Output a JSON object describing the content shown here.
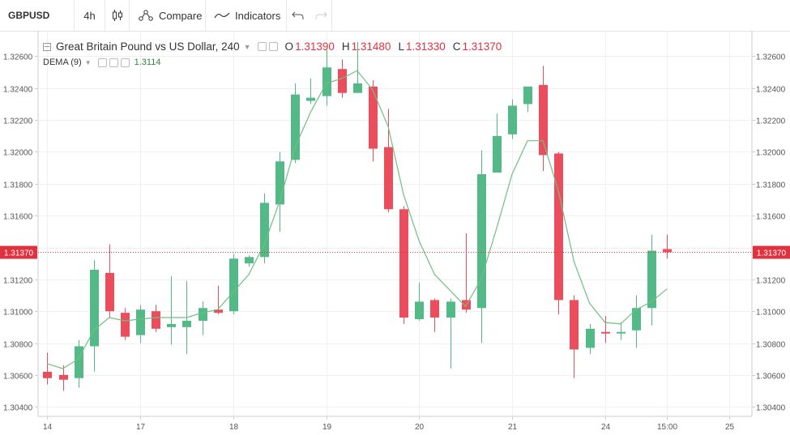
{
  "toolbar": {
    "symbol": "GBPUSD",
    "interval": "4h",
    "chart_type_icon": "candles-icon",
    "compare_label": "Compare",
    "indicators_label": "Indicators",
    "undo_icon": "undo-icon",
    "redo_icon": "redo-icon"
  },
  "legend": {
    "title": "Great Britain Pound vs US Dollar, 240",
    "o_key": "O",
    "o": "1.31390",
    "h_key": "H",
    "h": "1.31480",
    "l_key": "L",
    "l": "1.31330",
    "c_key": "C",
    "c": "1.31370",
    "indicator": "DEMA (9)",
    "indicator_value": "1.3114"
  },
  "colors": {
    "up": "#53b987",
    "down": "#eb4d5c",
    "dema": "#6fc07f",
    "last_price": "#e0313f"
  },
  "chart_data": {
    "type": "candlestick",
    "y_ticks": [
      "1.30400",
      "1.30600",
      "1.30800",
      "1.31000",
      "1.31200",
      "1.31400",
      "1.31600",
      "1.31800",
      "1.32000",
      "1.32200",
      "1.32400",
      "1.32600"
    ],
    "y_tick_values": [
      1.304,
      1.306,
      1.308,
      1.31,
      1.312,
      1.314,
      1.316,
      1.318,
      1.32,
      1.322,
      1.324,
      1.326
    ],
    "ylim": [
      1.3034,
      1.3276
    ],
    "x_tick_labels": [
      "14",
      "17",
      "18",
      "19",
      "20",
      "21",
      "24",
      "15:00",
      "25"
    ],
    "x_tick_bar_index": [
      0,
      6,
      12,
      18,
      24,
      30,
      36,
      40,
      44
    ],
    "last_price_label": "1.31370",
    "last_price": 1.3137,
    "bars_count": 46,
    "candles": [
      {
        "i": 0,
        "o": 1.3062,
        "h": 1.3074,
        "l": 1.3054,
        "c": 1.3058
      },
      {
        "i": 1,
        "o": 1.306,
        "h": 1.3066,
        "l": 1.305,
        "c": 1.3057
      },
      {
        "i": 2,
        "o": 1.3058,
        "h": 1.3082,
        "l": 1.3052,
        "c": 1.3078
      },
      {
        "i": 3,
        "o": 1.3078,
        "h": 1.3132,
        "l": 1.3062,
        "c": 1.3126
      },
      {
        "i": 4,
        "o": 1.3124,
        "h": 1.3142,
        "l": 1.3096,
        "c": 1.31
      },
      {
        "i": 5,
        "o": 1.3099,
        "h": 1.3102,
        "l": 1.3082,
        "c": 1.3084
      },
      {
        "i": 6,
        "o": 1.3085,
        "h": 1.3104,
        "l": 1.308,
        "c": 1.3101
      },
      {
        "i": 7,
        "o": 1.31,
        "h": 1.3104,
        "l": 1.3087,
        "c": 1.3089
      },
      {
        "i": 8,
        "o": 1.309,
        "h": 1.3122,
        "l": 1.3079,
        "c": 1.3092
      },
      {
        "i": 9,
        "o": 1.309,
        "h": 1.3119,
        "l": 1.3073,
        "c": 1.3094
      },
      {
        "i": 10,
        "o": 1.3094,
        "h": 1.3106,
        "l": 1.3085,
        "c": 1.3102
      },
      {
        "i": 11,
        "o": 1.3101,
        "h": 1.3116,
        "l": 1.3098,
        "c": 1.3099
      },
      {
        "i": 12,
        "o": 1.31,
        "h": 1.3136,
        "l": 1.3098,
        "c": 1.3133
      },
      {
        "i": 13,
        "o": 1.313,
        "h": 1.3135,
        "l": 1.3128,
        "c": 1.3134
      },
      {
        "i": 14,
        "o": 1.3134,
        "h": 1.3174,
        "l": 1.313,
        "c": 1.3168
      },
      {
        "i": 15,
        "o": 1.3167,
        "h": 1.32,
        "l": 1.315,
        "c": 1.3194
      },
      {
        "i": 16,
        "o": 1.3195,
        "h": 1.3243,
        "l": 1.3193,
        "c": 1.3236
      },
      {
        "i": 17,
        "o": 1.3232,
        "h": 1.3246,
        "l": 1.323,
        "c": 1.3234
      },
      {
        "i": 18,
        "o": 1.3235,
        "h": 1.3264,
        "l": 1.3229,
        "c": 1.3253
      },
      {
        "i": 19,
        "o": 1.3252,
        "h": 1.3258,
        "l": 1.3234,
        "c": 1.3237
      },
      {
        "i": 20,
        "o": 1.3237,
        "h": 1.3269,
        "l": 1.3237,
        "c": 1.3243
      },
      {
        "i": 21,
        "o": 1.3241,
        "h": 1.3245,
        "l": 1.3194,
        "c": 1.3202
      },
      {
        "i": 22,
        "o": 1.3203,
        "h": 1.3227,
        "l": 1.3162,
        "c": 1.3164
      },
      {
        "i": 23,
        "o": 1.3164,
        "h": 1.3166,
        "l": 1.3092,
        "c": 1.3096
      },
      {
        "i": 24,
        "o": 1.3095,
        "h": 1.3118,
        "l": 1.3094,
        "c": 1.3106
      },
      {
        "i": 25,
        "o": 1.3107,
        "h": 1.3108,
        "l": 1.3087,
        "c": 1.3096
      },
      {
        "i": 26,
        "o": 1.3096,
        "h": 1.3108,
        "l": 1.3064,
        "c": 1.3106
      },
      {
        "i": 27,
        "o": 1.3107,
        "h": 1.3149,
        "l": 1.3099,
        "c": 1.3101
      },
      {
        "i": 28,
        "o": 1.3102,
        "h": 1.3201,
        "l": 1.308,
        "c": 1.3186
      },
      {
        "i": 29,
        "o": 1.3187,
        "h": 1.3224,
        "l": 1.3187,
        "c": 1.321
      },
      {
        "i": 30,
        "o": 1.3211,
        "h": 1.3233,
        "l": 1.3208,
        "c": 1.3229
      },
      {
        "i": 31,
        "o": 1.323,
        "h": 1.3241,
        "l": 1.3225,
        "c": 1.3241
      },
      {
        "i": 32,
        "o": 1.3242,
        "h": 1.3254,
        "l": 1.3188,
        "c": 1.3198
      },
      {
        "i": 33,
        "o": 1.3199,
        "h": 1.32,
        "l": 1.3098,
        "c": 1.3107
      },
      {
        "i": 34,
        "o": 1.3107,
        "h": 1.311,
        "l": 1.3058,
        "c": 1.3076
      },
      {
        "i": 35,
        "o": 1.3077,
        "h": 1.3092,
        "l": 1.3073,
        "c": 1.3089
      },
      {
        "i": 36,
        "o": 1.3087,
        "h": 1.3097,
        "l": 1.308,
        "c": 1.3086
      },
      {
        "i": 37,
        "o": 1.3086,
        "h": 1.3093,
        "l": 1.3082,
        "c": 1.3087
      },
      {
        "i": 38,
        "o": 1.3088,
        "h": 1.311,
        "l": 1.3077,
        "c": 1.3102
      },
      {
        "i": 39,
        "o": 1.3102,
        "h": 1.3148,
        "l": 1.3091,
        "c": 1.3138
      },
      {
        "i": 40,
        "o": 1.3139,
        "h": 1.3148,
        "l": 1.3133,
        "c": 1.3137
      }
    ],
    "dema": [
      {
        "i": 0,
        "v": 1.3067
      },
      {
        "i": 1,
        "v": 1.3064
      },
      {
        "i": 2,
        "v": 1.307
      },
      {
        "i": 3,
        "v": 1.3088
      },
      {
        "i": 4,
        "v": 1.3096
      },
      {
        "i": 5,
        "v": 1.3094
      },
      {
        "i": 6,
        "v": 1.3095
      },
      {
        "i": 7,
        "v": 1.3096
      },
      {
        "i": 8,
        "v": 1.3096
      },
      {
        "i": 9,
        "v": 1.3096
      },
      {
        "i": 10,
        "v": 1.3099
      },
      {
        "i": 11,
        "v": 1.3101
      },
      {
        "i": 12,
        "v": 1.3112
      },
      {
        "i": 13,
        "v": 1.3123
      },
      {
        "i": 14,
        "v": 1.3142
      },
      {
        "i": 15,
        "v": 1.3169
      },
      {
        "i": 16,
        "v": 1.3203
      },
      {
        "i": 17,
        "v": 1.3225
      },
      {
        "i": 18,
        "v": 1.3243
      },
      {
        "i": 19,
        "v": 1.3246
      },
      {
        "i": 20,
        "v": 1.3251
      },
      {
        "i": 21,
        "v": 1.3239
      },
      {
        "i": 22,
        "v": 1.3216
      },
      {
        "i": 23,
        "v": 1.3173
      },
      {
        "i": 24,
        "v": 1.3144
      },
      {
        "i": 25,
        "v": 1.3123
      },
      {
        "i": 26,
        "v": 1.3113
      },
      {
        "i": 27,
        "v": 1.3103
      },
      {
        "i": 28,
        "v": 1.312
      },
      {
        "i": 29,
        "v": 1.3152
      },
      {
        "i": 30,
        "v": 1.3186
      },
      {
        "i": 31,
        "v": 1.3207
      },
      {
        "i": 32,
        "v": 1.3207
      },
      {
        "i": 33,
        "v": 1.3175
      },
      {
        "i": 34,
        "v": 1.3131
      },
      {
        "i": 35,
        "v": 1.3105
      },
      {
        "i": 36,
        "v": 1.3093
      },
      {
        "i": 37,
        "v": 1.3092
      },
      {
        "i": 38,
        "v": 1.3101
      },
      {
        "i": 39,
        "v": 1.3106
      },
      {
        "i": 40,
        "v": 1.3114
      }
    ]
  }
}
